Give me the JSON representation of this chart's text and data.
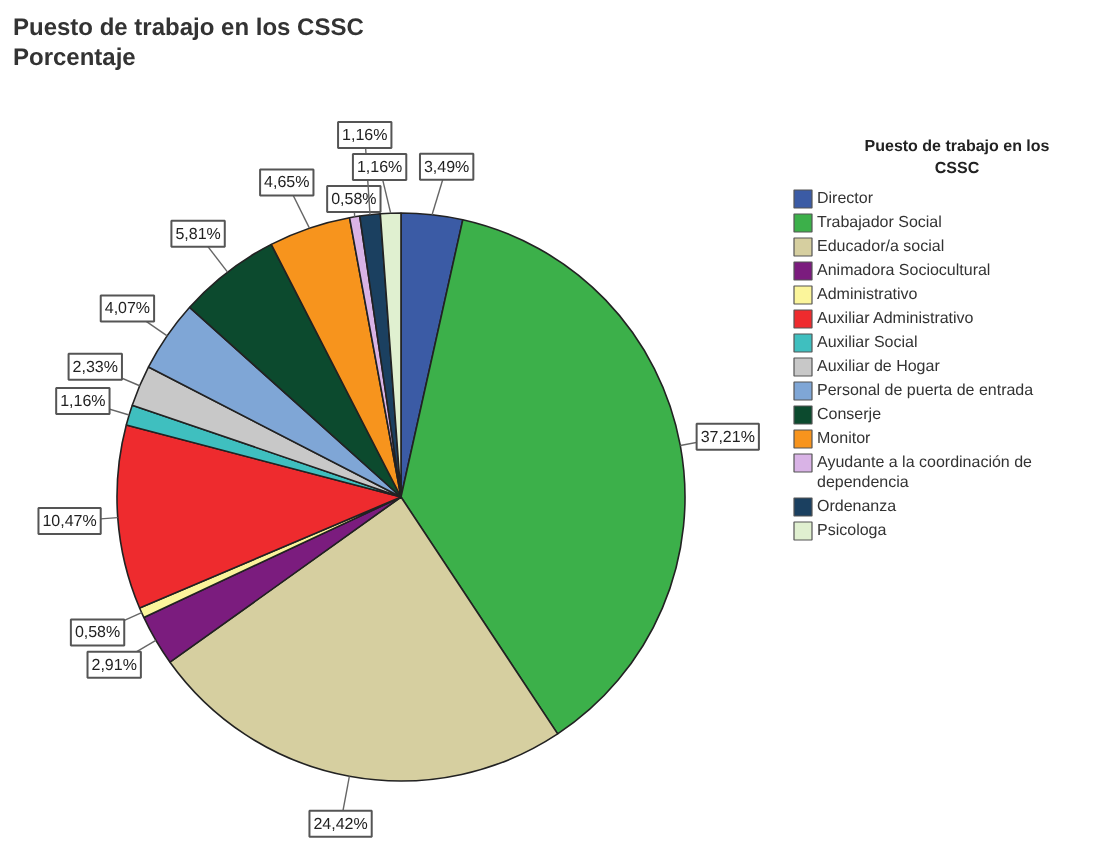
{
  "chart_data": {
    "type": "pie",
    "title": "Puesto de trabajo en los CSSC",
    "subtitle": "Porcentaje",
    "legend_title": "Puesto de trabajo en los CSSC",
    "legend": "right",
    "categories": [
      "Director",
      "Trabajador Social",
      "Educador/a social",
      "Animadora Sociocultural",
      "Administrativo",
      "Auxiliar Administrativo",
      "Auxiliar Social",
      "Auxiliar de Hogar",
      "Personal de puerta de entrada",
      "Conserje",
      "Monitor",
      "Ayudante a la coordinación de dependencia",
      "Ordenanza",
      "Psicologa"
    ],
    "values": [
      3.49,
      37.21,
      24.42,
      2.91,
      0.58,
      10.47,
      1.16,
      2.33,
      4.07,
      5.81,
      4.65,
      0.58,
      1.16,
      1.16
    ],
    "colors": [
      "#3b5ba5",
      "#3cb04a",
      "#d6cfa0",
      "#7b1c7e",
      "#fbf59b",
      "#ee2b2e",
      "#3fbfbf",
      "#c8c8c8",
      "#7fa6d6",
      "#0c4a2e",
      "#f7941d",
      "#d9b3e6",
      "#1b4060",
      "#e0f0d0"
    ],
    "value_labels": [
      "3,49%",
      "37,21%",
      "24,42%",
      "2,91%",
      "0,58%",
      "10,47%",
      "1,16%",
      "2,33%",
      "4,07%",
      "5,81%",
      "4,65%",
      "0,58%",
      "1,16%",
      "1,16%"
    ]
  }
}
